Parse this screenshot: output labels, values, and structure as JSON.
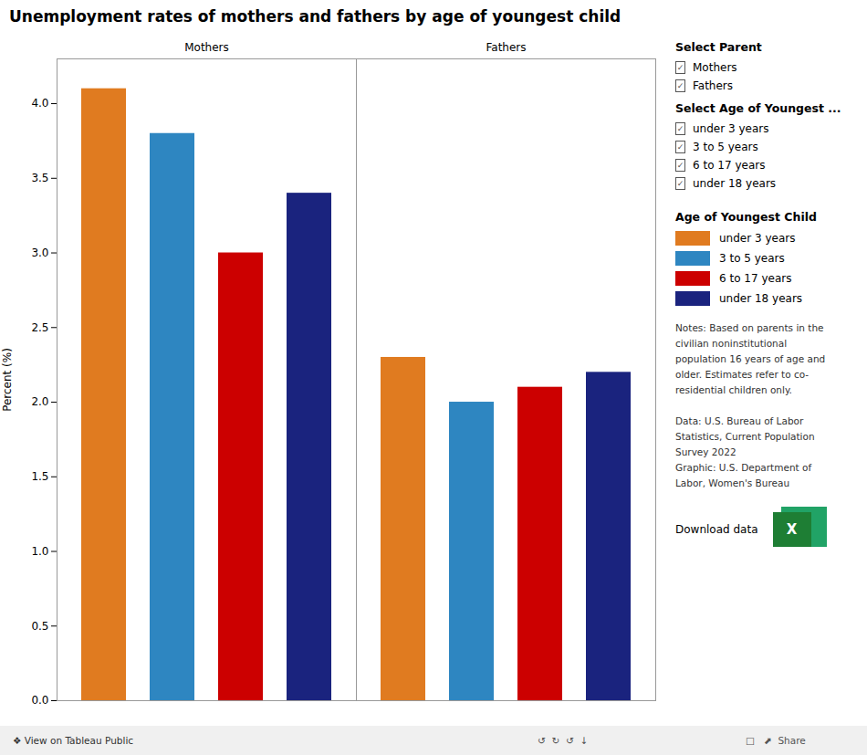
{
  "chart_data": {
    "type": "bar",
    "title": "Unemployment rates of mothers and fathers by age of youngest child",
    "ylabel": "Percent (%)",
    "categories": [
      "Mothers",
      "Fathers"
    ],
    "series": [
      {
        "name": "under 3 years",
        "color": "#E07B20",
        "values": [
          4.1,
          2.3
        ]
      },
      {
        "name": "3 to 5 years",
        "color": "#2E86C1",
        "values": [
          3.8,
          2.0
        ]
      },
      {
        "name": "6 to 17 years",
        "color": "#CC0000",
        "values": [
          3.0,
          2.1
        ]
      },
      {
        "name": "under 18 years",
        "color": "#1A237E",
        "values": [
          3.4,
          2.2
        ]
      }
    ],
    "ylim": [
      0,
      4.3
    ],
    "yticks": [
      {
        "value": 0,
        "label": "0.0"
      },
      0.5,
      {
        "value": 1,
        "label": "1.0"
      },
      1.5,
      {
        "value": 2,
        "label": "2.0"
      },
      2.5,
      {
        "value": 3,
        "label": "3.0"
      },
      3.5,
      {
        "value": 4,
        "label": "4.0"
      }
    ],
    "grid": false,
    "legend": "right",
    "legend_title": "Age of Youngest Child",
    "annotations": {
      "filters": [
        {
          "title": "Select Parent",
          "items": [
            "Mothers",
            "Fathers"
          ],
          "check": "✓"
        },
        {
          "title": "Select Age of Youngest ...",
          "items": [
            "under 3 years",
            "3 to 5 years",
            "6 to 17 years",
            "under 18 years"
          ],
          "check": "✓"
        }
      ],
      "notes": [
        [
          "Notes: Based on parents in the",
          "civilian noninstitutional",
          "population 16 years of age and",
          "older. Estimates refer to co-",
          "residential children only."
        ],
        [
          "Data: U.S. Bureau of Labor",
          "Statistics, Current Population",
          "Survey 2022",
          "Graphic: U.S. Department of",
          "Labor, Women's Bureau"
        ]
      ],
      "download": {
        "text": "Download data",
        "icon": "X"
      },
      "footer": [
        "❖ View on Tableau Public",
        "↺  ↻  ↺  ↓",
        "□   ⬈  Share"
      ]
    }
  }
}
